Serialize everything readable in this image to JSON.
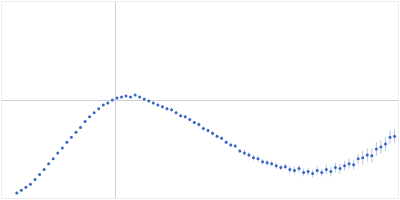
{
  "chart_data": {
    "type": "scatter",
    "x": [
      0.13,
      0.17,
      0.21,
      0.25,
      0.29,
      0.33,
      0.37,
      0.41,
      0.45,
      0.49,
      0.53,
      0.57,
      0.61,
      0.65,
      0.69,
      0.73,
      0.77,
      0.81,
      0.85,
      0.89,
      0.93,
      0.97,
      1.01,
      1.05,
      1.09,
      1.13,
      1.17,
      1.21,
      1.25,
      1.29,
      1.33,
      1.37,
      1.41,
      1.45,
      1.49,
      1.53,
      1.57,
      1.61,
      1.65,
      1.69,
      1.73,
      1.77,
      1.81,
      1.85,
      1.89,
      1.93,
      1.97,
      2.01,
      2.05,
      2.09,
      2.13,
      2.17,
      2.21,
      2.25,
      2.29,
      2.33,
      2.37,
      2.41,
      2.45,
      2.49,
      2.53,
      2.57,
      2.61,
      2.65,
      2.69,
      2.73,
      2.77,
      2.81,
      2.85,
      2.89,
      2.93,
      2.97,
      3.01,
      3.05,
      3.09,
      3.13,
      3.17,
      3.21,
      3.25,
      3.29,
      3.33,
      3.37,
      3.41,
      3.45
    ],
    "values": [
      0.05,
      0.08,
      0.11,
      0.14,
      0.19,
      0.24,
      0.29,
      0.35,
      0.4,
      0.46,
      0.51,
      0.57,
      0.62,
      0.67,
      0.72,
      0.78,
      0.83,
      0.87,
      0.91,
      0.95,
      0.97,
      1.0,
      1.02,
      1.03,
      1.04,
      1.03,
      1.05,
      1.03,
      1.01,
      0.99,
      0.97,
      0.95,
      0.93,
      0.91,
      0.9,
      0.87,
      0.84,
      0.83,
      0.8,
      0.77,
      0.75,
      0.71,
      0.69,
      0.66,
      0.63,
      0.61,
      0.57,
      0.54,
      0.53,
      0.48,
      0.46,
      0.44,
      0.41,
      0.4,
      0.37,
      0.36,
      0.35,
      0.33,
      0.31,
      0.32,
      0.29,
      0.28,
      0.3,
      0.26,
      0.27,
      0.25,
      0.28,
      0.26,
      0.29,
      0.27,
      0.31,
      0.3,
      0.33,
      0.35,
      0.34,
      0.4,
      0.41,
      0.44,
      0.43,
      0.5,
      0.52,
      0.55,
      0.62,
      0.63
    ],
    "errors": [
      0.005,
      0.005,
      0.005,
      0.005,
      0.005,
      0.005,
      0.005,
      0.005,
      0.005,
      0.005,
      0.005,
      0.005,
      0.005,
      0.005,
      0.005,
      0.005,
      0.005,
      0.005,
      0.005,
      0.005,
      0.01,
      0.01,
      0.01,
      0.01,
      0.01,
      0.01,
      0.01,
      0.01,
      0.01,
      0.01,
      0.015,
      0.015,
      0.015,
      0.015,
      0.015,
      0.015,
      0.015,
      0.015,
      0.015,
      0.015,
      0.02,
      0.02,
      0.02,
      0.02,
      0.02,
      0.02,
      0.02,
      0.02,
      0.02,
      0.02,
      0.03,
      0.03,
      0.03,
      0.03,
      0.03,
      0.03,
      0.03,
      0.03,
      0.03,
      0.03,
      0.04,
      0.04,
      0.04,
      0.04,
      0.04,
      0.04,
      0.04,
      0.04,
      0.05,
      0.05,
      0.05,
      0.05,
      0.05,
      0.05,
      0.05,
      0.05,
      0.07,
      0.07,
      0.07,
      0.07,
      0.07,
      0.07,
      0.07,
      0.07
    ],
    "color": "#3a66c4",
    "marker": "circle",
    "xlim": [
      0,
      3.48
    ],
    "xticks": [
      1
    ],
    "ylim": [
      0,
      2
    ],
    "yticks": [
      1
    ],
    "grid": true,
    "tick_labels": false
  }
}
